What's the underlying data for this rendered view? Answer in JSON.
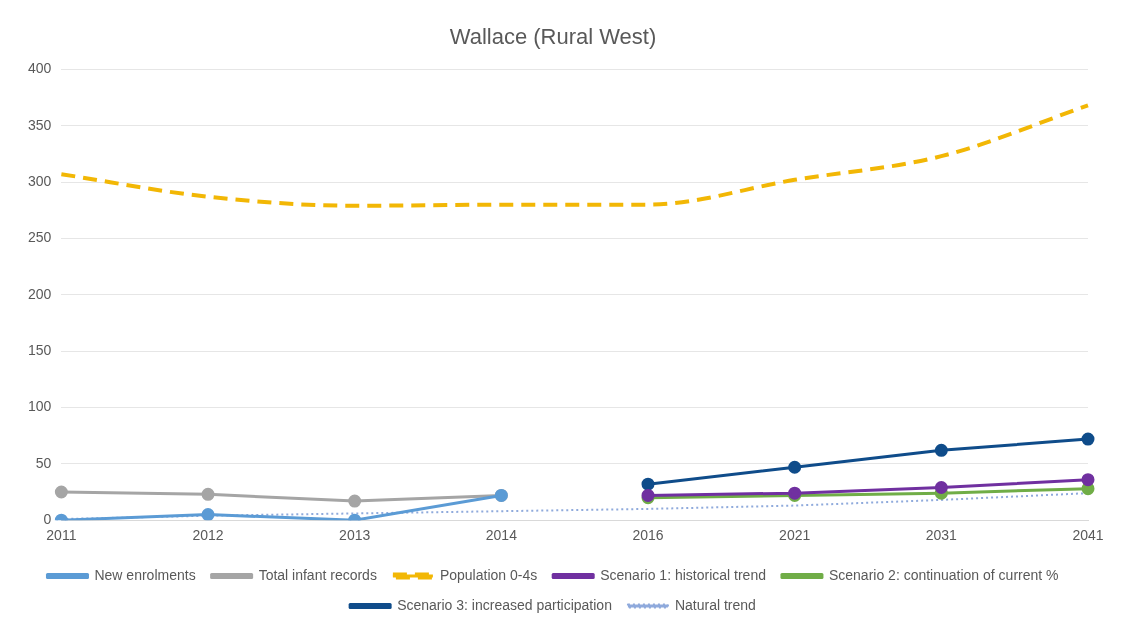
{
  "chart_data": {
    "type": "line",
    "title": "Wallace (Rural West)",
    "categories": [
      "2011",
      "2012",
      "2013",
      "2014",
      "2016",
      "2021",
      "2031",
      "2041"
    ],
    "ylim": [
      0,
      400
    ],
    "yticks": [
      0,
      50,
      100,
      150,
      200,
      250,
      300,
      350,
      400
    ],
    "grid": "y",
    "legend": "bottom",
    "series": [
      {
        "name": "New enrolments",
        "color": "#5b9bd5",
        "marker": "circle",
        "line_style": "solid",
        "values": [
          0,
          5,
          0,
          22,
          null,
          null,
          null,
          null
        ]
      },
      {
        "name": "Total infant records",
        "color": "#a5a5a5",
        "marker": "circle",
        "line_style": "solid",
        "values": [
          25,
          23,
          17,
          22,
          null,
          null,
          null,
          null
        ]
      },
      {
        "name": "Population 0-4s",
        "color": "#f2b705",
        "marker": "none",
        "line_style": "dashed",
        "values": [
          307,
          287,
          279,
          280,
          280,
          302,
          323,
          368
        ]
      },
      {
        "name": "Scenario 1: historical trend",
        "color": "#7030a0",
        "marker": "circle",
        "line_style": "solid",
        "values": [
          null,
          null,
          null,
          null,
          22,
          24,
          29,
          36
        ]
      },
      {
        "name": "Scenario 2: continuation of current %",
        "color": "#70ad47",
        "marker": "circle",
        "line_style": "solid",
        "values": [
          null,
          null,
          null,
          null,
          20,
          22,
          24,
          28
        ]
      },
      {
        "name": "Scenario 3: increased participation",
        "color": "#0f4c8a",
        "marker": "circle",
        "line_style": "solid",
        "values": [
          null,
          null,
          null,
          null,
          32,
          47,
          62,
          72
        ]
      },
      {
        "name": "Natural trend",
        "color": "#8faadc",
        "marker": "none",
        "line_style": "dotted",
        "values": [
          1,
          4,
          6,
          8,
          10,
          13,
          18,
          24
        ]
      }
    ]
  }
}
